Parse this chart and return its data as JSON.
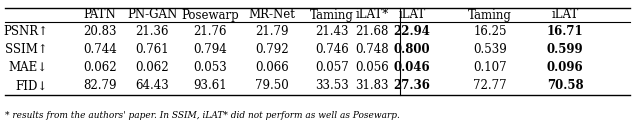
{
  "col_headers_left": [
    "",
    "PATN",
    "PN-GAN",
    "Posewarp",
    "MR-Net",
    "Taming",
    "iLAT*",
    "iLAT"
  ],
  "col_headers_right": [
    "Taming",
    "iLAT"
  ],
  "row_headers": [
    "PSNR↑",
    "SSIM↑",
    "MAE↓",
    "FID↓"
  ],
  "data_left": [
    [
      "20.83",
      "21.36",
      "21.76",
      "21.79",
      "21.43",
      "21.68",
      "22.94"
    ],
    [
      "0.744",
      "0.761",
      "0.794",
      "0.792",
      "0.746",
      "0.748",
      "0.800"
    ],
    [
      "0.062",
      "0.062",
      "0.053",
      "0.066",
      "0.057",
      "0.056",
      "0.046"
    ],
    [
      "82.79",
      "64.43",
      "93.61",
      "79.50",
      "33.53",
      "31.83",
      "27.36"
    ]
  ],
  "data_right": [
    [
      "16.25",
      "16.71"
    ],
    [
      "0.539",
      "0.599"
    ],
    [
      "0.107",
      "0.096"
    ],
    [
      "72.77",
      "70.58"
    ]
  ],
  "caption": "* results from the authors' paper. In SSIM, iLAT* did not perform as well as Posewarp.",
  "background_color": "#ffffff",
  "font_size": 8.5,
  "caption_font_size": 6.5
}
